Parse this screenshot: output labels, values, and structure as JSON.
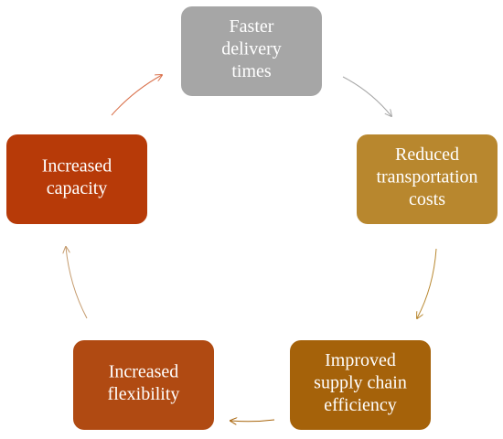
{
  "nodes": [
    {
      "lines": [
        "Faster",
        "delivery",
        "times"
      ]
    },
    {
      "lines": [
        "Reduced",
        "transportation",
        "costs"
      ]
    },
    {
      "lines": [
        "Improved",
        "supply chain",
        "efficiency"
      ]
    },
    {
      "lines": [
        "Increased",
        "flexibility"
      ]
    },
    {
      "lines": [
        "Increased",
        "capacity"
      ]
    }
  ]
}
